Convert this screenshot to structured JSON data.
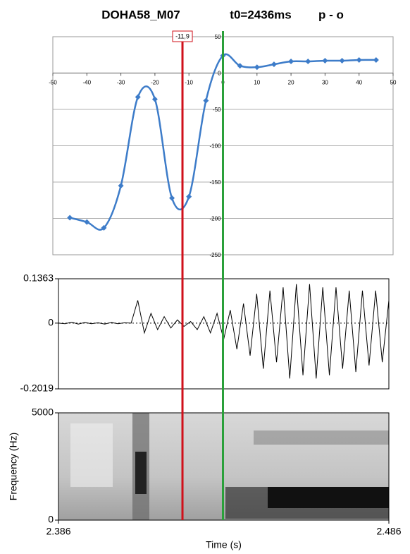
{
  "chart_data": [
    {
      "type": "line",
      "title": [
        "DOHA58_M07",
        "t0=2436ms",
        "p - o"
      ],
      "x": [
        -45,
        -40,
        -35,
        -30,
        -25,
        -20,
        -15,
        -10,
        -5,
        0,
        5,
        10,
        15,
        20,
        25,
        30,
        35,
        40,
        45
      ],
      "values": [
        -199,
        -205,
        -213,
        -155,
        -33,
        -36,
        -172,
        -170,
        -38,
        24,
        10,
        8,
        12,
        16,
        16,
        17,
        17,
        18,
        18
      ],
      "color": "#3d7cc9",
      "xlim": [
        -50,
        50
      ],
      "xticks": [
        -50,
        -40,
        -30,
        -20,
        -10,
        0,
        10,
        20,
        30,
        40,
        50
      ],
      "ylim": [
        -250,
        50
      ],
      "yticks": [
        50,
        0,
        -50,
        -100,
        -150,
        -200,
        -250
      ],
      "grid": true,
      "markers": [
        {
          "value": -11.9,
          "label": "-11,9",
          "color": "#d0101a"
        },
        {
          "value": 0,
          "color": "#2aa03a"
        }
      ]
    },
    {
      "type": "waveform",
      "x": [
        2.386,
        2.388,
        2.39,
        2.392,
        2.394,
        2.396,
        2.398,
        2.4,
        2.402,
        2.404,
        2.406,
        2.408,
        2.41,
        2.412,
        2.414,
        2.416,
        2.418,
        2.42,
        2.422,
        2.424,
        2.426,
        2.428,
        2.43,
        2.432,
        2.434,
        2.436,
        2.438,
        2.44,
        2.442,
        2.444,
        2.446,
        2.448,
        2.45,
        2.452,
        2.454,
        2.456,
        2.458,
        2.46,
        2.462,
        2.464,
        2.466,
        2.468,
        2.47,
        2.472,
        2.474,
        2.476,
        2.478,
        2.48,
        2.482,
        2.484,
        2.486
      ],
      "values": [
        0,
        -0.002,
        0.003,
        -0.003,
        0.002,
        -0.002,
        0.001,
        -0.003,
        0.002,
        -0.002,
        0.001,
        0,
        0.07,
        -0.03,
        0.03,
        -0.02,
        0.02,
        -0.015,
        0.01,
        -0.01,
        0.005,
        -0.02,
        0.02,
        -0.03,
        0.03,
        -0.05,
        0.04,
        -0.08,
        0.06,
        -0.1,
        0.09,
        -0.14,
        0.1,
        -0.12,
        0.11,
        -0.17,
        0.12,
        -0.16,
        0.12,
        -0.17,
        0.11,
        -0.16,
        0.11,
        -0.14,
        0.1,
        -0.15,
        0.1,
        -0.13,
        0.1,
        -0.12,
        0.07
      ],
      "color": "#000000",
      "xlim": [
        2.386,
        2.486
      ],
      "ylim": [
        -0.2019,
        0.1363
      ],
      "yticks": [
        0.1363,
        0,
        -0.2019
      ]
    },
    {
      "type": "spectrogram",
      "xlabel": "Time (s)",
      "ylabel": "Frequency (Hz)",
      "xlim": [
        2.386,
        2.486
      ],
      "xticks": [
        2.386,
        2.486
      ],
      "ylim": [
        0,
        5000
      ],
      "yticks": [
        0,
        5000
      ]
    }
  ]
}
